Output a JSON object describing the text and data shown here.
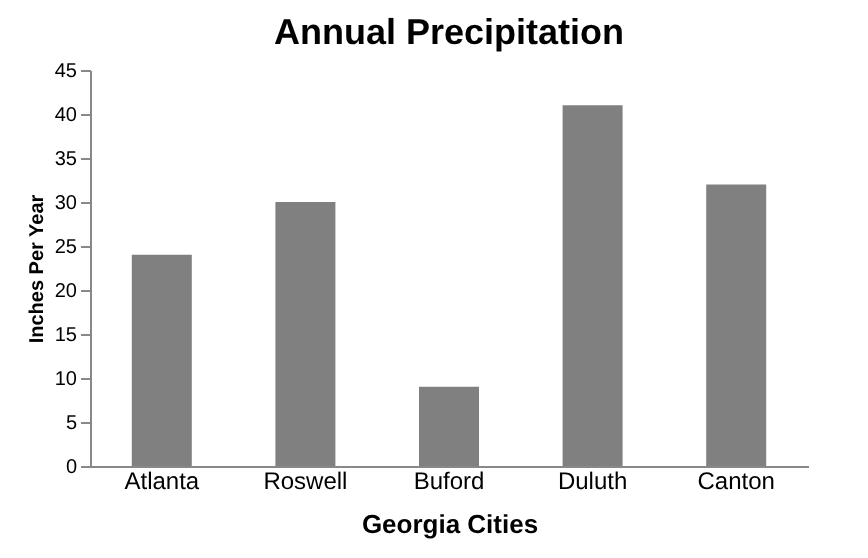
{
  "chart_data": {
    "type": "bar",
    "title": "Annual Precipitation",
    "xlabel": "Georgia Cities",
    "ylabel": "Inches Per Year",
    "categories": [
      "Atlanta",
      "Roswell",
      "Buford",
      "Duluth",
      "Canton"
    ],
    "values": [
      24,
      30,
      9,
      41,
      32
    ],
    "color": "#808080",
    "ylim": [
      0,
      45
    ],
    "yticks": [
      0,
      5,
      10,
      15,
      20,
      25,
      30,
      35,
      40,
      45
    ],
    "grid": false
  }
}
